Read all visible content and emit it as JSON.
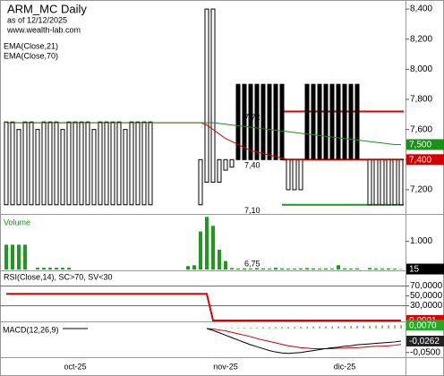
{
  "chart_data": [
    {
      "type": "candlestick",
      "title": "ARM_MC Daily",
      "subtitle": "as of 12/12/2025",
      "source": "www.wealth-lab.com",
      "categories": [
        null,
        null,
        null,
        null,
        null,
        null,
        null,
        null,
        null,
        null,
        null,
        "oct-25",
        null,
        null,
        null,
        null,
        null,
        null,
        null,
        null,
        null,
        null,
        null,
        null,
        null,
        null,
        null,
        null,
        null,
        null,
        null,
        null,
        null,
        null,
        null,
        "nov-25",
        null,
        null,
        null,
        null,
        null,
        null,
        null,
        null,
        null,
        null,
        null,
        null,
        null,
        null,
        null,
        null,
        null,
        null,
        "dic-25",
        null,
        null,
        null,
        null,
        null,
        null,
        null,
        null,
        null
      ],
      "open": [
        7.1,
        7.1,
        7.1,
        7.1,
        7.1,
        7.1,
        7.1,
        7.1,
        7.1,
        7.1,
        7.1,
        7.1,
        7.1,
        7.1,
        7.1,
        7.1,
        7.1,
        7.1,
        7.1,
        7.1,
        7.1,
        7.1,
        7.1,
        7.1,
        null,
        null,
        null,
        null,
        null,
        null,
        null,
        7.1,
        7.25,
        7.25,
        7.25,
        7.33,
        7.35,
        7.9,
        7.9,
        7.9,
        7.9,
        7.9,
        7.9,
        7.9,
        7.9,
        7.2,
        7.2,
        7.2,
        7.9,
        7.9,
        7.9,
        7.9,
        7.9,
        7.9,
        7.9,
        7.9,
        7.9,
        null,
        7.1,
        7.1,
        7.1,
        7.1,
        7.1,
        7.1
      ],
      "close": [
        7.65,
        7.65,
        7.6,
        7.65,
        7.65,
        7.6,
        7.65,
        7.65,
        7.65,
        7.6,
        7.65,
        7.65,
        7.65,
        7.65,
        7.6,
        7.65,
        7.65,
        7.65,
        7.65,
        7.6,
        7.65,
        7.65,
        7.65,
        7.65,
        null,
        null,
        null,
        null,
        null,
        null,
        null,
        7.4,
        8.4,
        8.4,
        7.4,
        7.4,
        7.4,
        7.4,
        7.4,
        7.4,
        7.4,
        7.4,
        7.4,
        7.4,
        7.4,
        7.4,
        7.4,
        7.4,
        7.4,
        7.4,
        7.4,
        7.4,
        7.4,
        7.4,
        7.4,
        7.4,
        7.4,
        null,
        7.4,
        7.4,
        7.4,
        7.4,
        7.4,
        7.4
      ],
      "ylim": [
        7.045,
        8.46
      ],
      "yticks": [
        {
          "value": 7.2,
          "label": "7,200"
        },
        {
          "value": 7.4,
          "label": "7,400"
        },
        {
          "value": 7.6,
          "label": "7,600"
        },
        {
          "value": 7.8,
          "label": "7,800"
        },
        {
          "value": 8.0,
          "label": "8,000"
        },
        {
          "value": 8.2,
          "label": "8,200"
        },
        {
          "value": 8.4,
          "label": "8,400"
        }
      ],
      "series": [
        {
          "name": "EMA(Close,21)",
          "color": "#d40000",
          "last_value_label": "7,400",
          "values": [
            7.645,
            7.645,
            7.645,
            7.645,
            7.645,
            7.645,
            7.645,
            7.645,
            7.645,
            7.645,
            7.645,
            7.645,
            7.645,
            7.645,
            7.645,
            7.645,
            7.645,
            7.645,
            7.645,
            7.645,
            7.645,
            7.645,
            7.645,
            7.645,
            7.645,
            7.645,
            7.645,
            7.645,
            7.645,
            7.645,
            7.645,
            7.645,
            7.63,
            7.6,
            7.57,
            7.54,
            7.52,
            7.5,
            7.48,
            7.46,
            7.45,
            7.44,
            7.43,
            7.42,
            7.41,
            7.4,
            7.4,
            7.4,
            7.4,
            7.4,
            7.4,
            7.4,
            7.4,
            7.4,
            7.4,
            7.4,
            7.4,
            7.4,
            7.4,
            7.4,
            7.4,
            7.4,
            7.4,
            7.4
          ]
        },
        {
          "name": "EMA(Close,70)",
          "color": "#1a8f1a",
          "last_value_label": "7,500",
          "values": [
            7.645,
            7.645,
            7.645,
            7.645,
            7.645,
            7.645,
            7.645,
            7.645,
            7.645,
            7.645,
            7.645,
            7.645,
            7.645,
            7.645,
            7.645,
            7.645,
            7.645,
            7.645,
            7.645,
            7.645,
            7.645,
            7.645,
            7.645,
            7.645,
            7.645,
            7.645,
            7.645,
            7.645,
            7.645,
            7.645,
            7.645,
            7.645,
            7.645,
            7.645,
            7.64,
            7.635,
            7.63,
            7.625,
            7.62,
            7.615,
            7.61,
            7.605,
            7.6,
            7.595,
            7.59,
            7.585,
            7.58,
            7.575,
            7.57,
            7.565,
            7.56,
            7.555,
            7.55,
            7.545,
            7.54,
            7.535,
            7.53,
            7.525,
            7.52,
            7.515,
            7.51,
            7.505,
            7.5,
            7.5
          ]
        }
      ],
      "levels": [
        {
          "label": "7,72",
          "value": 7.72,
          "color": "#e00000"
        },
        {
          "label": "7,40",
          "value": 7.4,
          "color": "#e00000"
        },
        {
          "label": "7,10",
          "value": 7.1,
          "color": "#1a9a1a"
        }
      ],
      "annotation": "6,75"
    },
    {
      "type": "bar",
      "title": "Volume",
      "color": "#1f9a1f",
      "last_value_label": "15",
      "values": [
        880,
        880,
        880,
        880,
        0,
        60,
        60,
        60,
        60,
        60,
        60,
        0,
        0,
        0,
        0,
        0,
        0,
        0,
        0,
        0,
        0,
        0,
        0,
        0,
        null,
        null,
        null,
        null,
        null,
        120,
        150,
        1350,
        1870,
        1550,
        700,
        300,
        50,
        30,
        40,
        30,
        50,
        40,
        30,
        60,
        40,
        30,
        30,
        40,
        50,
        40,
        30,
        40,
        30,
        150,
        40,
        30,
        40,
        null,
        50,
        40,
        30,
        40,
        30,
        15
      ],
      "ylim": [
        0,
        1940
      ],
      "yticks": [
        {
          "value": 1000,
          "label": "1.000"
        }
      ]
    },
    {
      "type": "line",
      "title": "RSI(Close,14), SC>70, SV<30",
      "color": "#e00000",
      "threshold_color": "#2a9a2a",
      "thresholds": [
        70,
        30
      ],
      "last_value_label": "0,0001",
      "values": [
        54,
        54,
        54,
        54,
        54,
        54,
        54,
        54,
        54,
        54,
        54,
        54,
        54,
        54,
        54,
        54,
        54,
        54,
        54,
        54,
        54,
        54,
        54,
        54,
        54,
        54,
        54,
        54,
        54,
        54,
        54,
        54,
        54,
        0.0001,
        0.0001,
        0.0001,
        0.0001,
        0.0001,
        0.0001,
        0.0001,
        0.0001,
        0.0001,
        0.0001,
        0.0001,
        0.0001,
        0.0001,
        0.0001,
        0.0001,
        0.0001,
        0.0001,
        0.0001,
        0.0001,
        0.0001,
        0.0001,
        0.0001,
        0.0001,
        0.0001,
        0.0001,
        0.0001,
        0.0001,
        0.0001,
        0.0001,
        0.0001,
        0.0001
      ],
      "ylim": [
        0,
        100
      ],
      "yticks": [
        {
          "value": 30,
          "label": "30,0000"
        },
        {
          "value": 50,
          "label": "50,0000"
        },
        {
          "value": 70,
          "label": "70,0000"
        }
      ]
    },
    {
      "type": "macd",
      "title": "MACD(12,26,9)",
      "series": [
        {
          "color": "#000000",
          "last_value_label": "-0,0262",
          "values": [
            null,
            null,
            null,
            null,
            null,
            null,
            null,
            null,
            null,
            0,
            0,
            0,
            0,
            0,
            null,
            null,
            null,
            null,
            null,
            null,
            null,
            null,
            null,
            null,
            null,
            null,
            null,
            null,
            null,
            null,
            null,
            null,
            0,
            -0.004,
            -0.009,
            -0.014,
            -0.019,
            -0.024,
            -0.029,
            -0.034,
            -0.038,
            -0.042,
            -0.046,
            -0.049,
            -0.051,
            -0.052,
            -0.051,
            -0.05,
            -0.048,
            -0.046,
            -0.044,
            -0.042,
            -0.04,
            -0.039,
            -0.037,
            -0.036,
            -0.034,
            -0.033,
            -0.032,
            -0.031,
            -0.03,
            -0.029,
            -0.028,
            -0.0262
          ]
        },
        {
          "color": "#c00000",
          "values": [
            null,
            null,
            null,
            null,
            null,
            null,
            null,
            null,
            null,
            0,
            0,
            0,
            0,
            0,
            null,
            null,
            null,
            null,
            null,
            null,
            null,
            null,
            null,
            null,
            null,
            null,
            null,
            null,
            null,
            null,
            null,
            null,
            0,
            -0.001,
            -0.003,
            -0.005,
            -0.008,
            -0.011,
            -0.014,
            -0.017,
            -0.021,
            -0.024,
            -0.027,
            -0.03,
            -0.033,
            -0.036,
            -0.038,
            -0.04,
            -0.041,
            -0.042,
            -0.042,
            -0.042,
            -0.042,
            -0.041,
            -0.041,
            -0.04,
            -0.04,
            -0.039,
            -0.038,
            -0.037,
            -0.037,
            -0.036,
            -0.035,
            -0.0332
          ]
        }
      ],
      "histogram": {
        "color": "#22aa22",
        "last_value_label": "0,0070",
        "values": [
          null,
          null,
          null,
          null,
          null,
          null,
          null,
          null,
          null,
          null,
          null,
          null,
          null,
          null,
          null,
          null,
          null,
          null,
          null,
          null,
          null,
          null,
          null,
          null,
          null,
          null,
          null,
          null,
          null,
          null,
          null,
          null,
          null,
          null,
          0.0005,
          0.001,
          0.0012,
          0.0015,
          0.0018,
          0.002,
          0.0022,
          0.0025,
          0.0027,
          0.003,
          0.0032,
          0.0034,
          0.0036,
          0.0038,
          0.004,
          0.0042,
          0.0044,
          0.0046,
          0.0048,
          0.005,
          0.0052,
          0.0054,
          0.0056,
          0.0058,
          0.006,
          0.0062,
          0.0064,
          0.0066,
          0.0068,
          0.007
        ]
      },
      "ylim": [
        -0.058,
        0.013
      ],
      "yticks": [
        {
          "value": -0.05,
          "label": "-0,0500"
        }
      ]
    }
  ]
}
